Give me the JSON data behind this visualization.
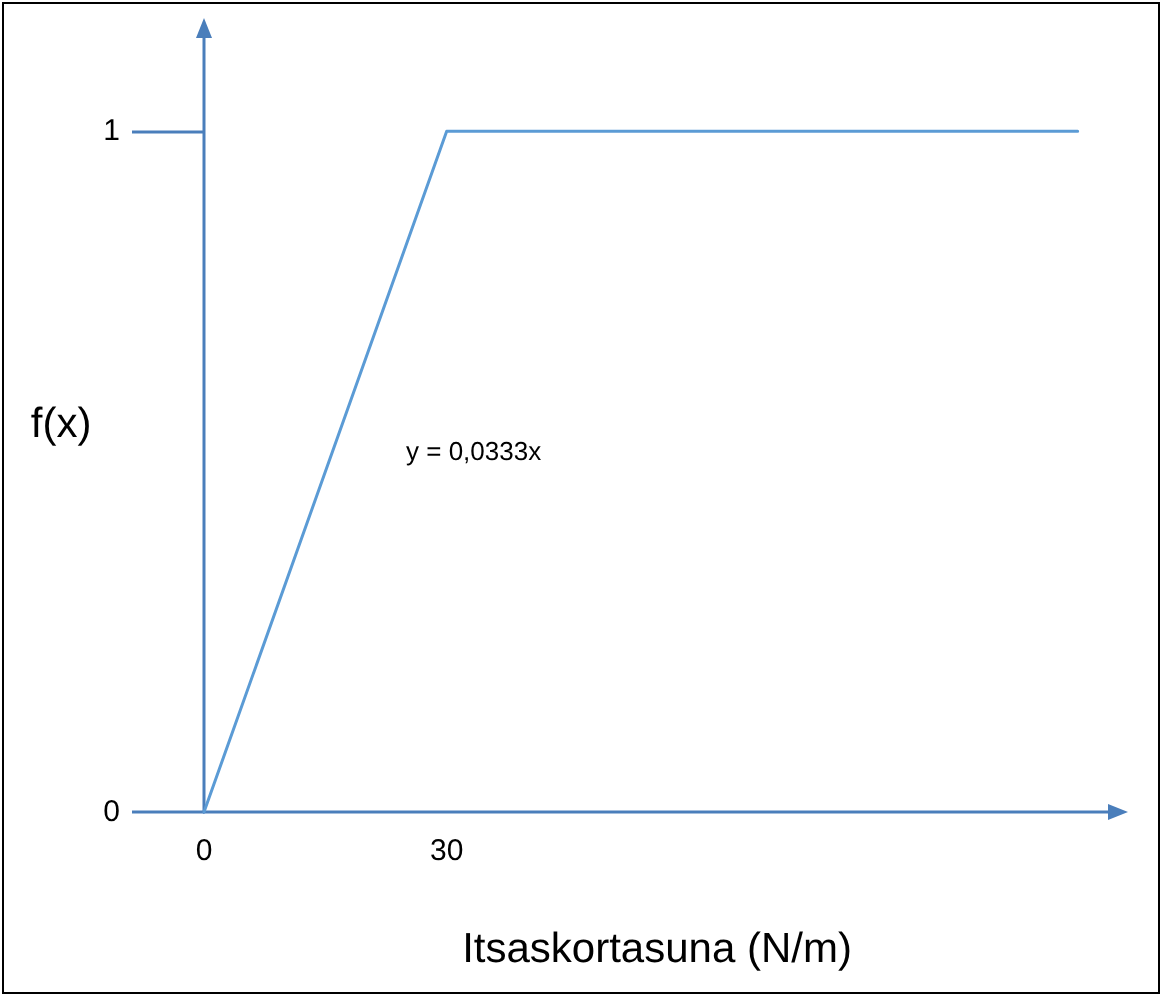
{
  "chart_data": {
    "type": "line",
    "xlabel": "Itsaskortasuna (N/m)",
    "ylabel": "f(x)",
    "x": [
      0,
      30,
      108
    ],
    "series": [
      {
        "color": "#5b9bd5",
        "values": [
          0,
          1,
          1
        ]
      }
    ],
    "xlim": [
      0,
      112
    ],
    "ylim": [
      0,
      1.14
    ],
    "xticks": [
      0,
      30
    ],
    "yticks": [
      0,
      1
    ],
    "annotations": [
      "y = 0,0333x"
    ],
    "grid": false,
    "marker": "none",
    "line_style": "solid"
  }
}
